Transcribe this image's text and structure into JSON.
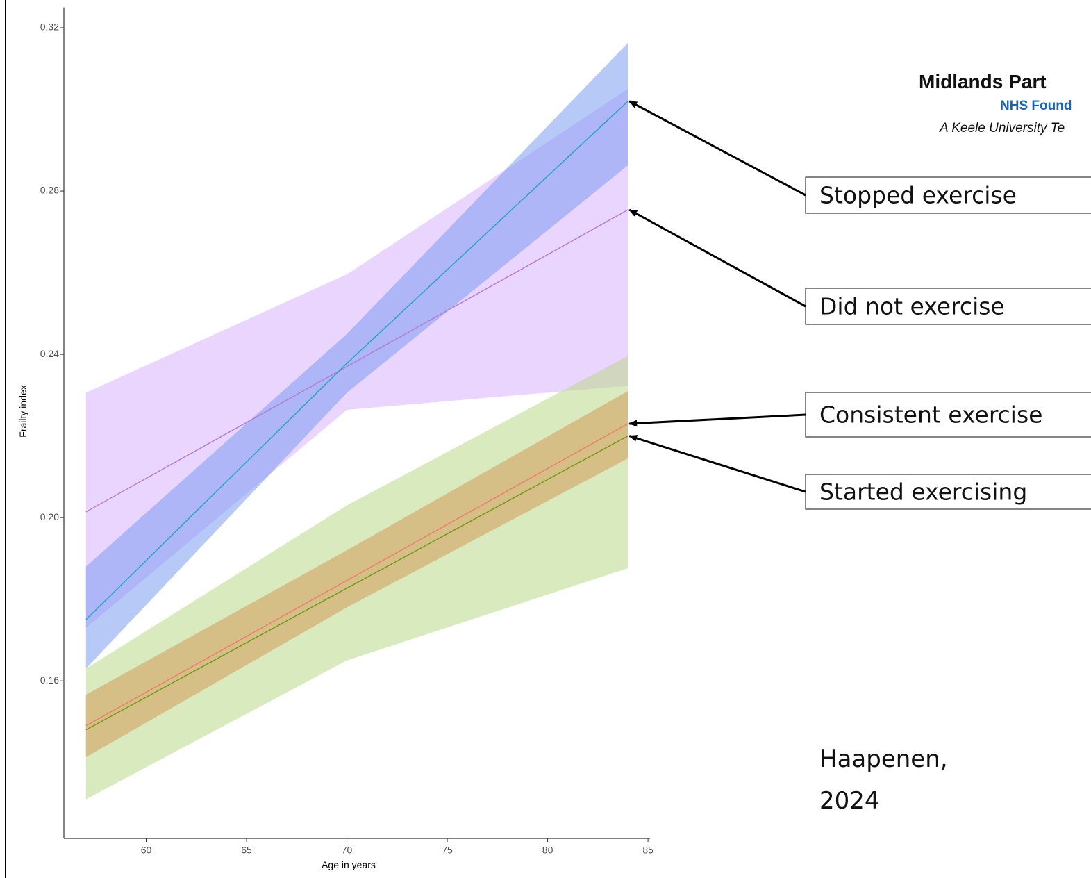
{
  "chart_data": {
    "type": "line_band",
    "x_label": "Age in years",
    "y_label": "Frailty index",
    "x": [
      57,
      70,
      84
    ],
    "xlim": [
      55.9,
      85.1
    ],
    "xticks": [
      60,
      65,
      70,
      75,
      80,
      85
    ],
    "ylim": [
      0.1214,
      0.325
    ],
    "yticks": [
      {
        "value": 0.16,
        "label": "0.16"
      },
      {
        "value": 0.2,
        "label": "0.20"
      },
      {
        "value": 0.24,
        "label": "0.24"
      },
      {
        "value": 0.28,
        "label": "0.28"
      },
      {
        "value": 0.32,
        "label": "0.32"
      }
    ],
    "series": [
      {
        "name": "Did not exercise",
        "color": "#b07ad6",
        "band_color": "#d9b3ff",
        "values": [
          0.2014,
          0.237,
          0.2754
        ],
        "lower": [
          0.173,
          0.2264,
          0.2323
        ],
        "upper": [
          0.2306,
          0.2596,
          0.305
        ]
      },
      {
        "name": "Stopped exercise",
        "color": "#1aa3c2",
        "band_color": "#7b9df0",
        "values": [
          0.175,
          0.2378,
          0.302
        ],
        "lower": [
          0.163,
          0.2306,
          0.2863
        ],
        "upper": [
          0.188,
          0.245,
          0.3163
        ]
      },
      {
        "name": "Started exercising",
        "color": "#6a9a10",
        "band_color": "#bcd98a",
        "values": [
          0.148,
          0.1827,
          0.22
        ],
        "lower": [
          0.131,
          0.165,
          0.1876
        ],
        "upper": [
          0.163,
          0.203,
          0.2396
        ]
      },
      {
        "name": "Consistent exercise",
        "color": "#f07a68",
        "band_color": "#d19a5a",
        "values": [
          0.149,
          0.1846,
          0.223
        ],
        "lower": [
          0.1413,
          0.178,
          0.2145
        ],
        "upper": [
          0.1566,
          0.192,
          0.231
        ]
      }
    ]
  },
  "logo": {
    "name": "Midlands Part",
    "sub": "NHS Found",
    "tagline": "A Keele University Te"
  },
  "citation": [
    "Haapenen,",
    "2024"
  ]
}
